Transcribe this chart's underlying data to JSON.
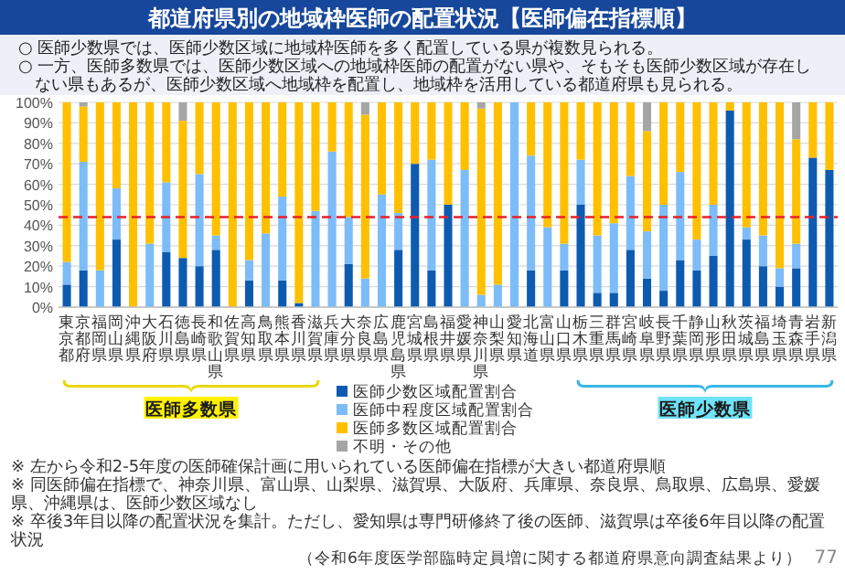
{
  "chart_data": {
    "type": "bar",
    "stacked": true,
    "title": "都道府県別の地域枠医師の配置状況【医師偏在指標順】",
    "categories": [
      "東京都",
      "京都府",
      "福岡県",
      "岡山県",
      "沖縄県",
      "大阪府",
      "石川県",
      "徳島県",
      "長崎県",
      "和歌山県",
      "佐賀県",
      "高知県",
      "鳥取県",
      "熊本県",
      "香川県",
      "滋賀県",
      "兵庫県",
      "大分県",
      "奈良県",
      "広島県",
      "鹿児島県",
      "宮城県",
      "島根県",
      "福井県",
      "愛媛県",
      "神奈川県",
      "山梨県",
      "愛知県",
      "北海道",
      "富山県",
      "山口県",
      "栃木県",
      "三重県",
      "群馬県",
      "宮崎県",
      "岐阜県",
      "長野県",
      "千葉県",
      "静岡県",
      "山形県",
      "秋田県",
      "茨城県",
      "福島県",
      "埼玉県",
      "青森県",
      "岩手県",
      "新潟県"
    ],
    "series": [
      {
        "name": "医師少数区域配置割合",
        "color": "#0c5bb0",
        "values": [
          11,
          18,
          0,
          33,
          0,
          0,
          27,
          24,
          20,
          28,
          0,
          13,
          0,
          13,
          2,
          0,
          0,
          21,
          0,
          0,
          28,
          70,
          18,
          50,
          0,
          0,
          0,
          0,
          18,
          0,
          18,
          50,
          7,
          7,
          28,
          14,
          8,
          23,
          18,
          25,
          96,
          33,
          20,
          10,
          19,
          73,
          67
        ]
      },
      {
        "name": "医師中程度区域配置割合",
        "color": "#7cbcf8",
        "values": [
          11,
          53,
          18,
          25,
          0,
          31,
          34,
          0,
          45,
          7,
          0,
          10,
          36,
          41,
          0,
          47,
          76,
          23,
          14,
          55,
          18,
          0,
          54,
          0,
          67,
          6,
          11,
          100,
          56,
          39,
          13,
          22,
          28,
          34,
          36,
          23,
          42,
          43,
          15,
          25,
          0,
          6,
          15,
          9,
          12,
          0,
          0
        ]
      },
      {
        "name": "医師多数区域配置割合",
        "color": "#ffc000",
        "values": [
          78,
          27,
          82,
          42,
          100,
          69,
          39,
          67,
          35,
          65,
          100,
          77,
          64,
          46,
          98,
          53,
          24,
          56,
          80,
          45,
          54,
          30,
          28,
          50,
          33,
          91,
          89,
          0,
          26,
          61,
          69,
          28,
          65,
          59,
          36,
          49,
          50,
          34,
          67,
          50,
          4,
          61,
          65,
          81,
          51,
          27,
          33
        ]
      },
      {
        "name": "不明・その他",
        "color": "#a5a5a5",
        "values": [
          0,
          2,
          0,
          0,
          0,
          0,
          0,
          9,
          0,
          0,
          0,
          0,
          0,
          0,
          0,
          0,
          0,
          0,
          6,
          0,
          0,
          0,
          0,
          0,
          0,
          3,
          0,
          0,
          0,
          0,
          0,
          0,
          0,
          0,
          0,
          14,
          0,
          0,
          0,
          0,
          0,
          0,
          0,
          0,
          18,
          0,
          0
        ]
      }
    ],
    "ylim": [
      0,
      100
    ],
    "yticks": [
      {
        "value": 0,
        "label": "0%"
      },
      {
        "value": 10,
        "label": "10%"
      },
      {
        "value": 20,
        "label": "20%"
      },
      {
        "value": 30,
        "label": "30%"
      },
      {
        "value": 40,
        "label": "40%"
      },
      {
        "value": 50,
        "label": "50%"
      },
      {
        "value": 60,
        "label": "60%"
      },
      {
        "value": 70,
        "label": "70%"
      },
      {
        "value": 80,
        "label": "80%"
      },
      {
        "value": 90,
        "label": "90%"
      },
      {
        "value": 100,
        "label": "100%"
      }
    ],
    "grid": "y",
    "legend": "bottom",
    "ref_lines": [
      {
        "axis": "y",
        "value": 44,
        "color": "#e8202a",
        "line_style": "dashed"
      }
    ],
    "annotations": [
      "○ 医師少数県では、医師少数区域に地域枠医師を多く配置している県が複数見られる。",
      "○ 一方、医師多数県では、医師少数区域への地域枠医師の配置がない県や、そもそも医師少数区域が存在しない県もあるが、医師少数区域へ地域枠を配置し、地域枠を活用している都道府県も見られる。",
      "医師多数県",
      "医師少数県",
      "※ 左から令和2-5年度の医師確保計画に用いられている医師偏在指標が大きい都道府県順",
      "※ 同医師偏在指標で、神奈川県、富山県、山梨県、滋賀県、大阪府、兵庫県、奈良県、鳥取県、広島県、愛媛県、沖縄県は、医師少数区域なし",
      "※ 卒後3年目以降の配置状況を集計。ただし、愛知県は専門研修終了後の医師、滋賀県は卒後6年目以降の配置状況",
      "（令和6年度医学部臨時定員増に関する都道府県意向調査結果より）",
      "77"
    ]
  }
}
